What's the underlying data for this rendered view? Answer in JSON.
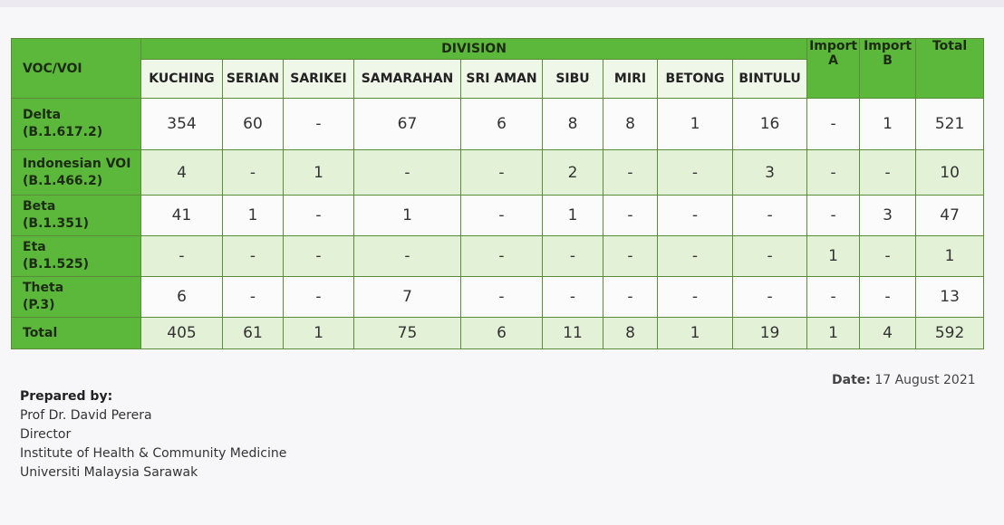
{
  "table": {
    "header": {
      "first": "VOC/VOI",
      "group": "DIVISION",
      "import_a": "Import A",
      "import_b": "Import B",
      "total": "Total",
      "divisions": [
        "KUCHING",
        "SERIAN",
        "SARIKEI",
        "SAMARAHAN",
        "SRI AMAN",
        "SIBU",
        "MIRI",
        "BETONG",
        "BINTULU"
      ]
    },
    "rows": [
      {
        "name": "Delta",
        "lineage": "(B.1.617.2)",
        "values": [
          "354",
          "60",
          "-",
          "67",
          "6",
          "8",
          "8",
          "1",
          "16",
          "-",
          "1",
          "521"
        ]
      },
      {
        "name": "Indonesian VOI",
        "lineage": "(B.1.466.2)",
        "values": [
          "4",
          "-",
          "1",
          "-",
          "-",
          "2",
          "-",
          "-",
          "3",
          "-",
          "-",
          "10"
        ]
      },
      {
        "name": "Beta",
        "lineage": "(B.1.351)",
        "values": [
          "41",
          "1",
          "-",
          "1",
          "-",
          "1",
          "-",
          "-",
          "-",
          "-",
          "3",
          "47"
        ]
      },
      {
        "name": "Eta",
        "lineage": "(B.1.525)",
        "values": [
          "-",
          "-",
          "-",
          "-",
          "-",
          "-",
          "-",
          "-",
          "-",
          "1",
          "-",
          "1"
        ]
      },
      {
        "name": "Theta",
        "lineage": "(P.3)",
        "values": [
          "6",
          "-",
          "-",
          "7",
          "-",
          "-",
          "-",
          "-",
          "-",
          "-",
          "-",
          "13"
        ]
      }
    ],
    "total": {
      "name": "Total",
      "values": [
        "405",
        "61",
        "1",
        "75",
        "6",
        "11",
        "8",
        "1",
        "19",
        "1",
        "4",
        "592"
      ]
    }
  },
  "footer": {
    "prepared_by": "Prepared by:",
    "lines": [
      "Prof Dr. David Perera",
      "Director",
      "Institute of Health & Community Medicine",
      "Universiti Malaysia Sarawak"
    ],
    "date_label": "Date:",
    "date": "17 August 2021"
  },
  "colors": {
    "header_green": "#5cb83a",
    "row_alt": "#e3f1d6"
  }
}
